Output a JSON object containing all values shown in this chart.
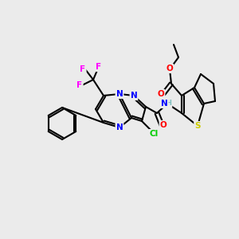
{
  "bg_color": "#ebebeb",
  "bond_color": "#000000",
  "bond_width": 1.5,
  "atom_colors": {
    "N": "#0000ff",
    "O": "#ff0000",
    "S": "#cccc00",
    "F": "#ff00ff",
    "Cl": "#00cc00",
    "H": "#7fbfbf",
    "C": "#000000"
  },
  "font_size": 7.5,
  "font_size_small": 6.5
}
